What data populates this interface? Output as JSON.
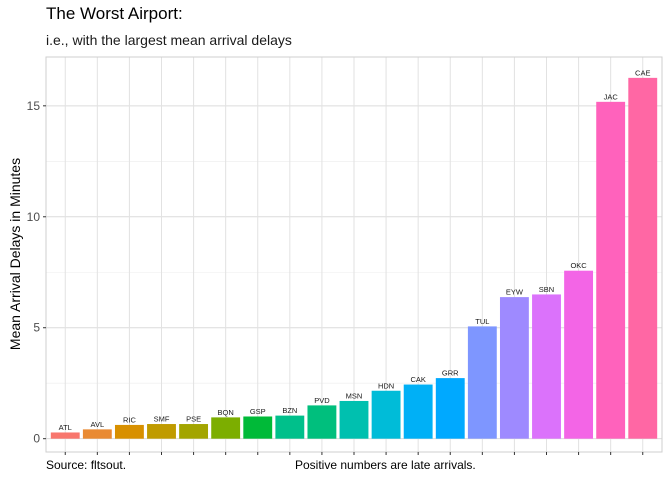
{
  "chart_data": {
    "type": "bar",
    "title": "The Worst Airport:",
    "subtitle": "i.e., with the largest mean arrival delays",
    "ylabel": "Mean Arrival Delays in Minutes",
    "xlabel": "",
    "caption_left": "Source: fltsout.",
    "caption_center": "Positive numbers are late arrivals.",
    "ylim": [
      -0.6,
      17.2
    ],
    "yticks": [
      0,
      5,
      10,
      15
    ],
    "grid": true,
    "legend": "none",
    "categories": [
      "ATL",
      "AVL",
      "RIC",
      "SMF",
      "PSE",
      "BQN",
      "GSP",
      "BZN",
      "PVD",
      "MSN",
      "HDN",
      "CAK",
      "GRR",
      "TUL",
      "EYW",
      "SBN",
      "OKC",
      "JAC",
      "CAE"
    ],
    "values": [
      0.28,
      0.42,
      0.62,
      0.66,
      0.66,
      0.96,
      1.0,
      1.04,
      1.5,
      1.7,
      2.16,
      2.44,
      2.73,
      5.06,
      6.38,
      6.5,
      7.57,
      15.18,
      16.26
    ],
    "colors": [
      "#F8766D",
      "#E98A32",
      "#D89000",
      "#C09B00",
      "#A3A500",
      "#7CAE00",
      "#00BA38",
      "#00C08B",
      "#00BF7D",
      "#00C0AF",
      "#00BCD8",
      "#00B0F6",
      "#00A9FF",
      "#7E96FF",
      "#9E8AFF",
      "#DB72FB",
      "#F365E6",
      "#FF62BC",
      "#FF67A4"
    ]
  }
}
